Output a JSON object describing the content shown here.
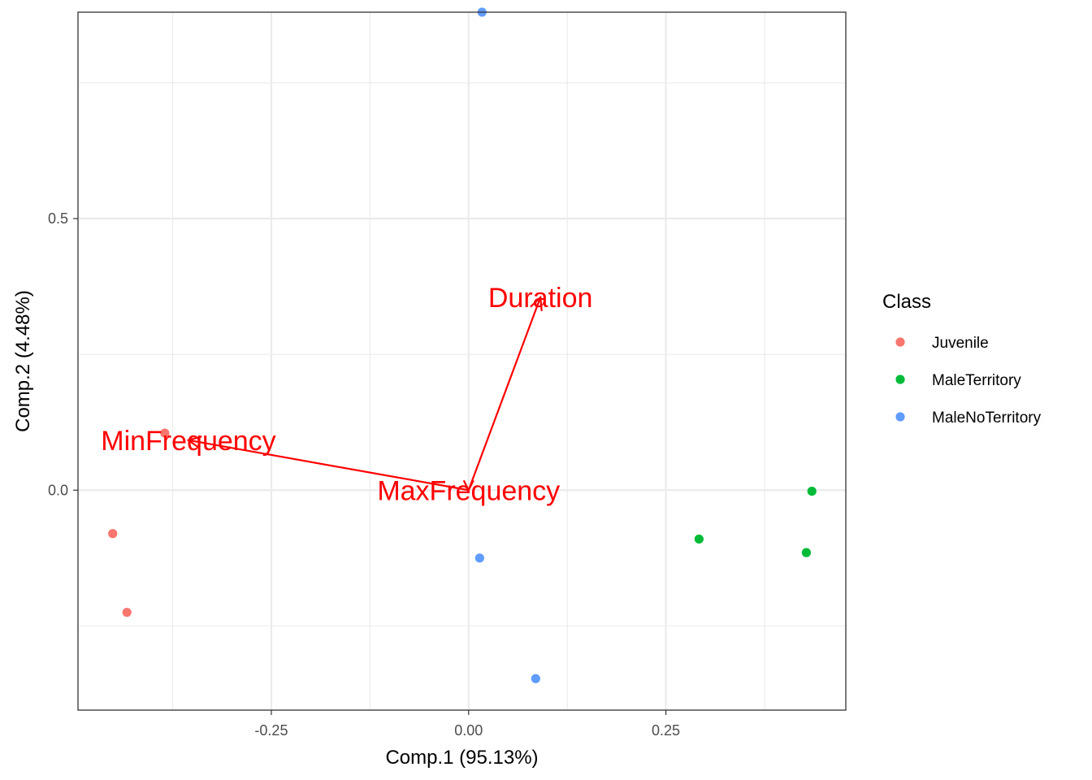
{
  "chart_data": {
    "type": "scatter",
    "title": "",
    "xlabel": "Comp.1 (95.13%)",
    "ylabel": "Comp.2 (4.48%)",
    "xlim": [
      -0.495,
      0.478
    ],
    "ylim": [
      -0.405,
      0.88
    ],
    "x_ticks": [
      {
        "value": -0.25,
        "label": "-0.25"
      },
      {
        "value": 0,
        "label": "0.00"
      },
      {
        "value": 0.25,
        "label": "0.25"
      }
    ],
    "y_ticks": [
      {
        "value": 0,
        "label": "0.0"
      },
      {
        "value": 0.5,
        "label": "0.5"
      }
    ],
    "grid": true,
    "legend": {
      "title": "Class",
      "position": "right"
    },
    "series": [
      {
        "name": "Juvenile",
        "color": "#F8766D",
        "points": [
          {
            "x": -0.385,
            "y": 0.105
          },
          {
            "x": -0.451,
            "y": -0.08
          },
          {
            "x": -0.433,
            "y": -0.225
          }
        ]
      },
      {
        "name": "MaleTerritory",
        "color": "#00BA38",
        "points": [
          {
            "x": 0.435,
            "y": -0.002
          },
          {
            "x": 0.292,
            "y": -0.09
          },
          {
            "x": 0.428,
            "y": -0.115
          }
        ]
      },
      {
        "name": "MaleNoTerritory",
        "color": "#619CFF",
        "points": [
          {
            "x": 0.017,
            "y": 0.88
          },
          {
            "x": 0.014,
            "y": -0.125
          },
          {
            "x": 0.085,
            "y": -0.347
          }
        ]
      }
    ],
    "loadings": {
      "color": "#FF0000",
      "vectors": [
        {
          "name": "Duration",
          "x": 0.091,
          "y": 0.355
        },
        {
          "name": "MinFrequency",
          "x": -0.355,
          "y": 0.092
        },
        {
          "name": "MaxFrequency",
          "x": 0.0,
          "y": 0.0
        }
      ]
    }
  }
}
